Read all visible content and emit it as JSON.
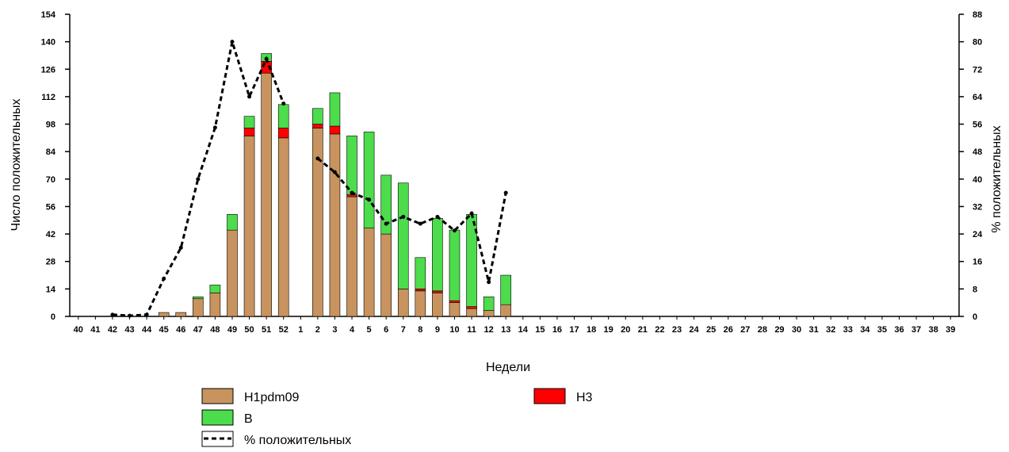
{
  "chart_data": {
    "type": "bar",
    "stacked": true,
    "title": "",
    "xlabel": "Недели",
    "ylabel": "Число положительных",
    "y2label": "% положительных",
    "ylim": [
      0,
      154
    ],
    "y2lim": [
      0,
      88
    ],
    "yticks": [
      0,
      14,
      28,
      42,
      56,
      70,
      84,
      98,
      112,
      126,
      140,
      154
    ],
    "y2ticks": [
      0,
      8,
      16,
      24,
      32,
      40,
      48,
      56,
      64,
      72,
      80,
      88
    ],
    "categories": [
      "40",
      "41",
      "42",
      "43",
      "44",
      "45",
      "46",
      "47",
      "48",
      "49",
      "50",
      "51",
      "52",
      "1",
      "2",
      "3",
      "4",
      "5",
      "6",
      "7",
      "8",
      "9",
      "10",
      "11",
      "12",
      "13",
      "14",
      "15",
      "16",
      "17",
      "18",
      "19",
      "20",
      "21",
      "22",
      "23",
      "24",
      "25",
      "26",
      "27",
      "28",
      "29",
      "30",
      "31",
      "32",
      "33",
      "34",
      "35",
      "36",
      "37",
      "38",
      "39"
    ],
    "series": [
      {
        "name": "H1pdm09",
        "kind": "bar",
        "color": "#C8935E",
        "values": [
          0,
          0,
          0,
          0,
          0,
          2,
          2,
          9,
          12,
          44,
          92,
          124,
          91,
          0,
          96,
          93,
          61,
          45,
          42,
          14,
          13,
          12,
          7,
          4,
          3,
          6,
          0,
          0,
          0,
          0,
          0,
          0,
          0,
          0,
          0,
          0,
          0,
          0,
          0,
          0,
          0,
          0,
          0,
          0,
          0,
          0,
          0,
          0,
          0,
          0,
          0,
          0
        ]
      },
      {
        "name": "H3",
        "kind": "bar",
        "color": "#FF0000",
        "values": [
          0,
          0,
          0,
          0,
          0,
          0,
          0,
          0,
          0,
          0,
          4,
          6,
          5,
          0,
          2,
          4,
          1,
          0,
          0,
          0,
          1,
          1,
          1,
          1,
          0,
          0,
          0,
          0,
          0,
          0,
          0,
          0,
          0,
          0,
          0,
          0,
          0,
          0,
          0,
          0,
          0,
          0,
          0,
          0,
          0,
          0,
          0,
          0,
          0,
          0,
          0,
          0
        ]
      },
      {
        "name": "B",
        "kind": "bar",
        "color": "#4CDC4C",
        "values": [
          0,
          0,
          0,
          0,
          0,
          0,
          0,
          1,
          4,
          8,
          6,
          4,
          12,
          0,
          8,
          17,
          30,
          49,
          30,
          54,
          16,
          37,
          36,
          47,
          7,
          15,
          0,
          0,
          0,
          0,
          0,
          0,
          0,
          0,
          0,
          0,
          0,
          0,
          0,
          0,
          0,
          0,
          0,
          0,
          0,
          0,
          0,
          0,
          0,
          0,
          0,
          0
        ]
      },
      {
        "name": "% положительных",
        "kind": "line",
        "axis": "right",
        "color": "#000000",
        "values": [
          null,
          null,
          0.5,
          0.2,
          0.5,
          11,
          20,
          40,
          55,
          80,
          64,
          75,
          62,
          null,
          46,
          42,
          36,
          34,
          27,
          29,
          27,
          29,
          25,
          30,
          10,
          36,
          null,
          null,
          null,
          null,
          null,
          null,
          null,
          null,
          null,
          null,
          null,
          null,
          null,
          null,
          null,
          null,
          null,
          null,
          null,
          null,
          null,
          null,
          null,
          null,
          null,
          null
        ]
      }
    ],
    "legend": {
      "placement": "bottom",
      "items": [
        {
          "label": "H1pdm09",
          "color": "#C8935E",
          "kind": "bar"
        },
        {
          "label": "H3",
          "color": "#FF0000",
          "kind": "bar"
        },
        {
          "label": "B",
          "color": "#4CDC4C",
          "kind": "bar"
        },
        {
          "label": "% положительных",
          "color": "#000000",
          "kind": "dashed-line"
        }
      ]
    },
    "grid": false
  }
}
